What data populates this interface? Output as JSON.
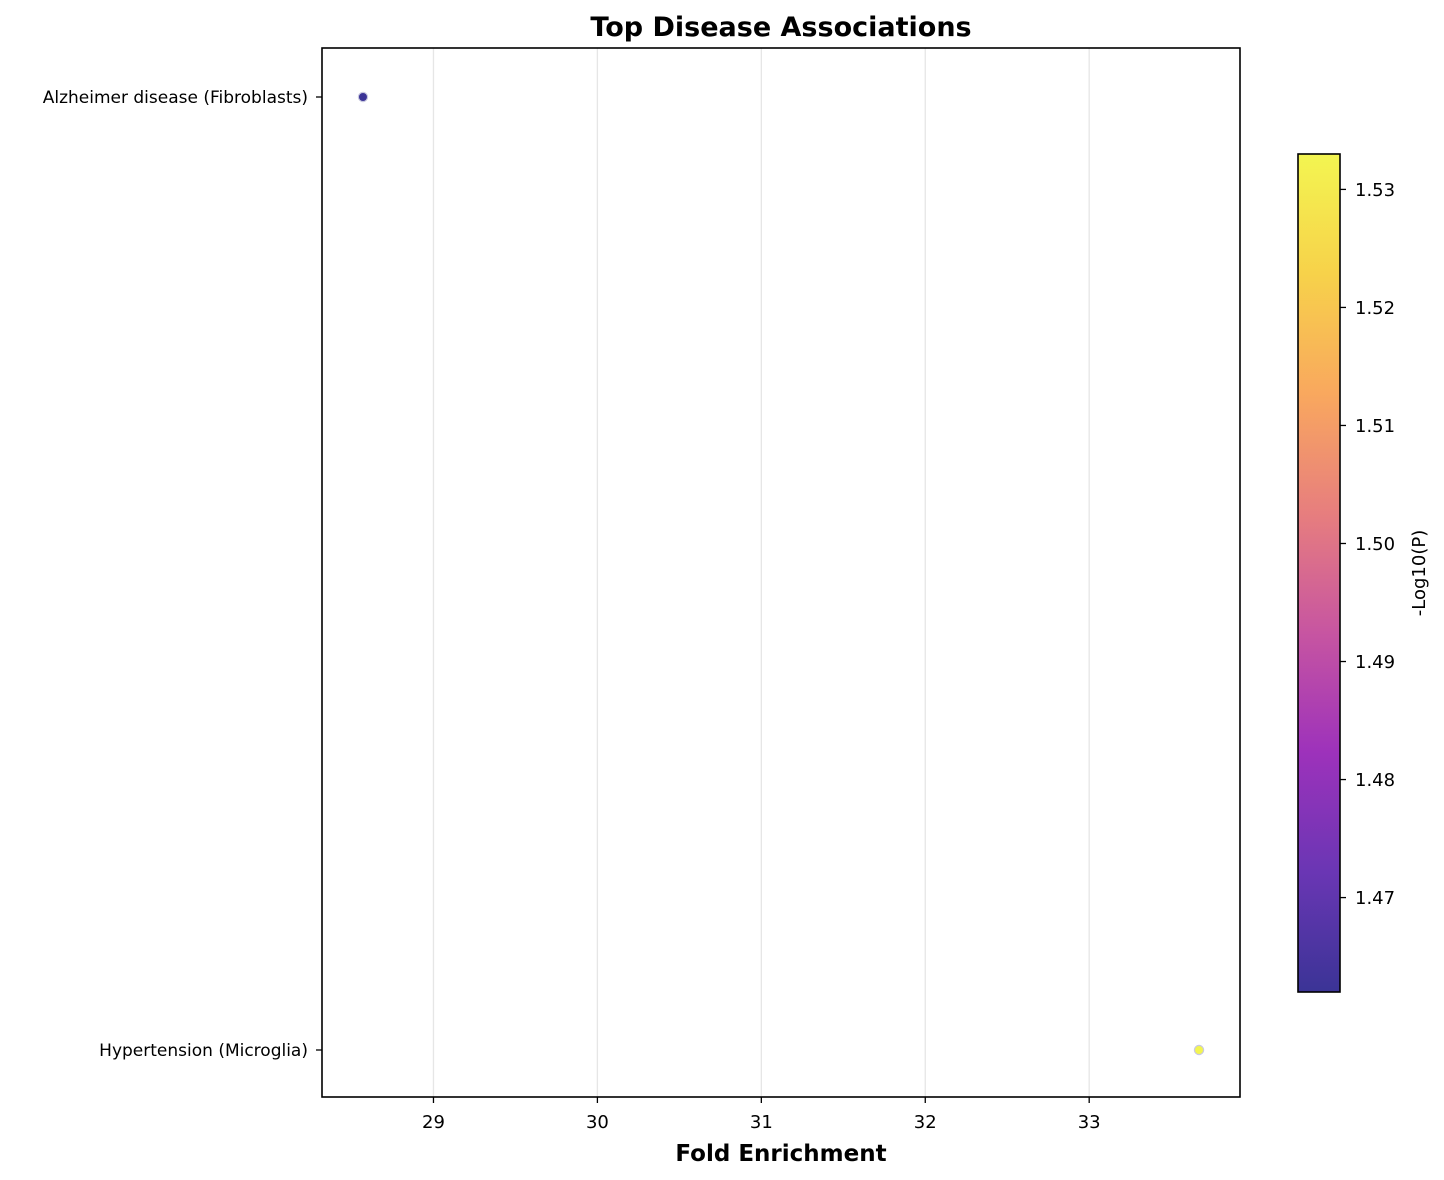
{
  "chart_data": {
    "type": "scatter",
    "title": "Top Disease Associations",
    "xlabel": "Fold Enrichment",
    "ylabel": "",
    "xlim": [
      28.32,
      33.92
    ],
    "xticks": [
      29,
      30,
      31,
      32,
      33
    ],
    "grid": "x",
    "categories": [
      "Alzheimer disease (Fibroblasts)",
      "Hypertension (Microglia)"
    ],
    "points": [
      {
        "category": "Alzheimer disease (Fibroblasts)",
        "x": 28.57,
        "neg_log10_p": 1.462
      },
      {
        "category": "Hypertension (Microglia)",
        "x": 33.67,
        "neg_log10_p": 1.533
      }
    ],
    "colorbar": {
      "label": "-Log10(P)",
      "colormap": "plasma",
      "range": [
        1.462,
        1.533
      ],
      "ticks": [
        1.47,
        1.48,
        1.49,
        1.5,
        1.51,
        1.52,
        1.53
      ],
      "tick_labels": [
        "1.47",
        "1.48",
        "1.49",
        "1.50",
        "1.51",
        "1.52",
        "1.53"
      ],
      "colors": [
        "#3b3496",
        "#6a36b4",
        "#9d32bb",
        "#c755a1",
        "#e77e7e",
        "#f9a85e",
        "#f7d24a",
        "#f3f551"
      ]
    }
  }
}
